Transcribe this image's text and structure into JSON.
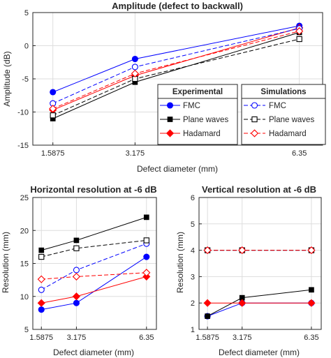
{
  "chart_data": [
    {
      "id": "amp",
      "type": "line",
      "title": "Amplitude (defect to backwall)",
      "xlabel": "Defect diameter (mm)",
      "ylabel": "Amplitude (dB)",
      "x": [
        1.5875,
        3.175,
        6.35
      ],
      "xticks": [
        "1.5875",
        "3.175",
        "6.35"
      ],
      "xlim": [
        1.2,
        6.8
      ],
      "ylim": [
        -15,
        5
      ],
      "yticks": [
        "-15",
        "-10",
        "-5",
        "0",
        "5"
      ],
      "grid": true,
      "legend": {
        "placement": "bottom-right",
        "groups": [
          {
            "title": "Experimental",
            "entries": [
              "FMC",
              "Plane waves",
              "Hadamard"
            ]
          },
          {
            "title": "Simulations",
            "entries": [
              "FMC",
              "Plane waves",
              "Hadamard"
            ]
          }
        ]
      },
      "series": [
        {
          "name": "FMC",
          "group": "Experimental",
          "color": "#0000ff",
          "dash": false,
          "marker": "filled-circle",
          "values": [
            -7,
            -2,
            3
          ]
        },
        {
          "name": "Plane waves",
          "group": "Experimental",
          "color": "#000000",
          "dash": false,
          "marker": "filled-square",
          "values": [
            -11,
            -5.5,
            2
          ]
        },
        {
          "name": "Hadamard",
          "group": "Experimental",
          "color": "#ff0000",
          "dash": false,
          "marker": "filled-diamond",
          "values": [
            -9.7,
            -4.5,
            2.7
          ]
        },
        {
          "name": "FMC",
          "group": "Simulations",
          "color": "#0000ff",
          "dash": true,
          "marker": "open-circle",
          "values": [
            -8.7,
            -3.2,
            2.6
          ]
        },
        {
          "name": "Plane waves",
          "group": "Simulations",
          "color": "#000000",
          "dash": true,
          "marker": "open-square",
          "values": [
            -10.5,
            -5,
            1
          ]
        },
        {
          "name": "Hadamard",
          "group": "Simulations",
          "color": "#ff0000",
          "dash": true,
          "marker": "open-diamond",
          "values": [
            -9.5,
            -4.2,
            2.2
          ]
        }
      ]
    },
    {
      "id": "hres",
      "type": "line",
      "title": "Horizontal resolution at -6 dB",
      "xlabel": "Defect diameter (mm)",
      "ylabel": "Resolution (mm)",
      "x": [
        1.5875,
        3.175,
        6.35
      ],
      "xticks": [
        "1.5875",
        "3.175",
        "6.35"
      ],
      "xlim": [
        1.2,
        6.8
      ],
      "ylim": [
        5,
        25
      ],
      "yticks": [
        "5",
        "10",
        "15",
        "20",
        "25"
      ],
      "grid": true,
      "series": [
        {
          "color": "#0000ff",
          "dash": false,
          "marker": "filled-circle",
          "values": [
            8,
            9,
            16
          ]
        },
        {
          "color": "#000000",
          "dash": false,
          "marker": "filled-square",
          "values": [
            17,
            18.5,
            22
          ]
        },
        {
          "color": "#ff0000",
          "dash": false,
          "marker": "filled-diamond",
          "values": [
            9,
            10,
            13
          ]
        },
        {
          "color": "#0000ff",
          "dash": true,
          "marker": "open-circle",
          "values": [
            11,
            14,
            18
          ]
        },
        {
          "color": "#000000",
          "dash": true,
          "marker": "open-square",
          "values": [
            16,
            17.3,
            18.5
          ]
        },
        {
          "color": "#ff0000",
          "dash": true,
          "marker": "open-diamond",
          "values": [
            12.6,
            13,
            13.6
          ]
        }
      ]
    },
    {
      "id": "vres",
      "type": "line",
      "title": "Vertical resolution at -6 dB",
      "xlabel": "Defect diameter (mm)",
      "ylabel": "Resolution (mm)",
      "x": [
        1.5875,
        3.175,
        6.35
      ],
      "xticks": [
        "1.5875",
        "3.175",
        "6.35"
      ],
      "xlim": [
        1.2,
        6.8
      ],
      "ylim": [
        1,
        6
      ],
      "yticks": [
        "1",
        "2",
        "3",
        "4",
        "5",
        "6"
      ],
      "grid": true,
      "series": [
        {
          "color": "#0000ff",
          "dash": false,
          "marker": "filled-circle",
          "values": [
            1.5,
            2,
            2
          ]
        },
        {
          "color": "#000000",
          "dash": false,
          "marker": "filled-square",
          "values": [
            1.5,
            2.2,
            2.5
          ]
        },
        {
          "color": "#ff0000",
          "dash": false,
          "marker": "filled-diamond",
          "values": [
            2,
            2,
            2
          ]
        },
        {
          "color": "#0000ff",
          "dash": true,
          "marker": "open-circle",
          "values": [
            4,
            4,
            4
          ]
        },
        {
          "color": "#000000",
          "dash": true,
          "marker": "open-square",
          "values": [
            4,
            4,
            4
          ]
        },
        {
          "color": "#ff0000",
          "dash": true,
          "marker": "open-diamond",
          "values": [
            4,
            4,
            4
          ]
        }
      ]
    }
  ]
}
